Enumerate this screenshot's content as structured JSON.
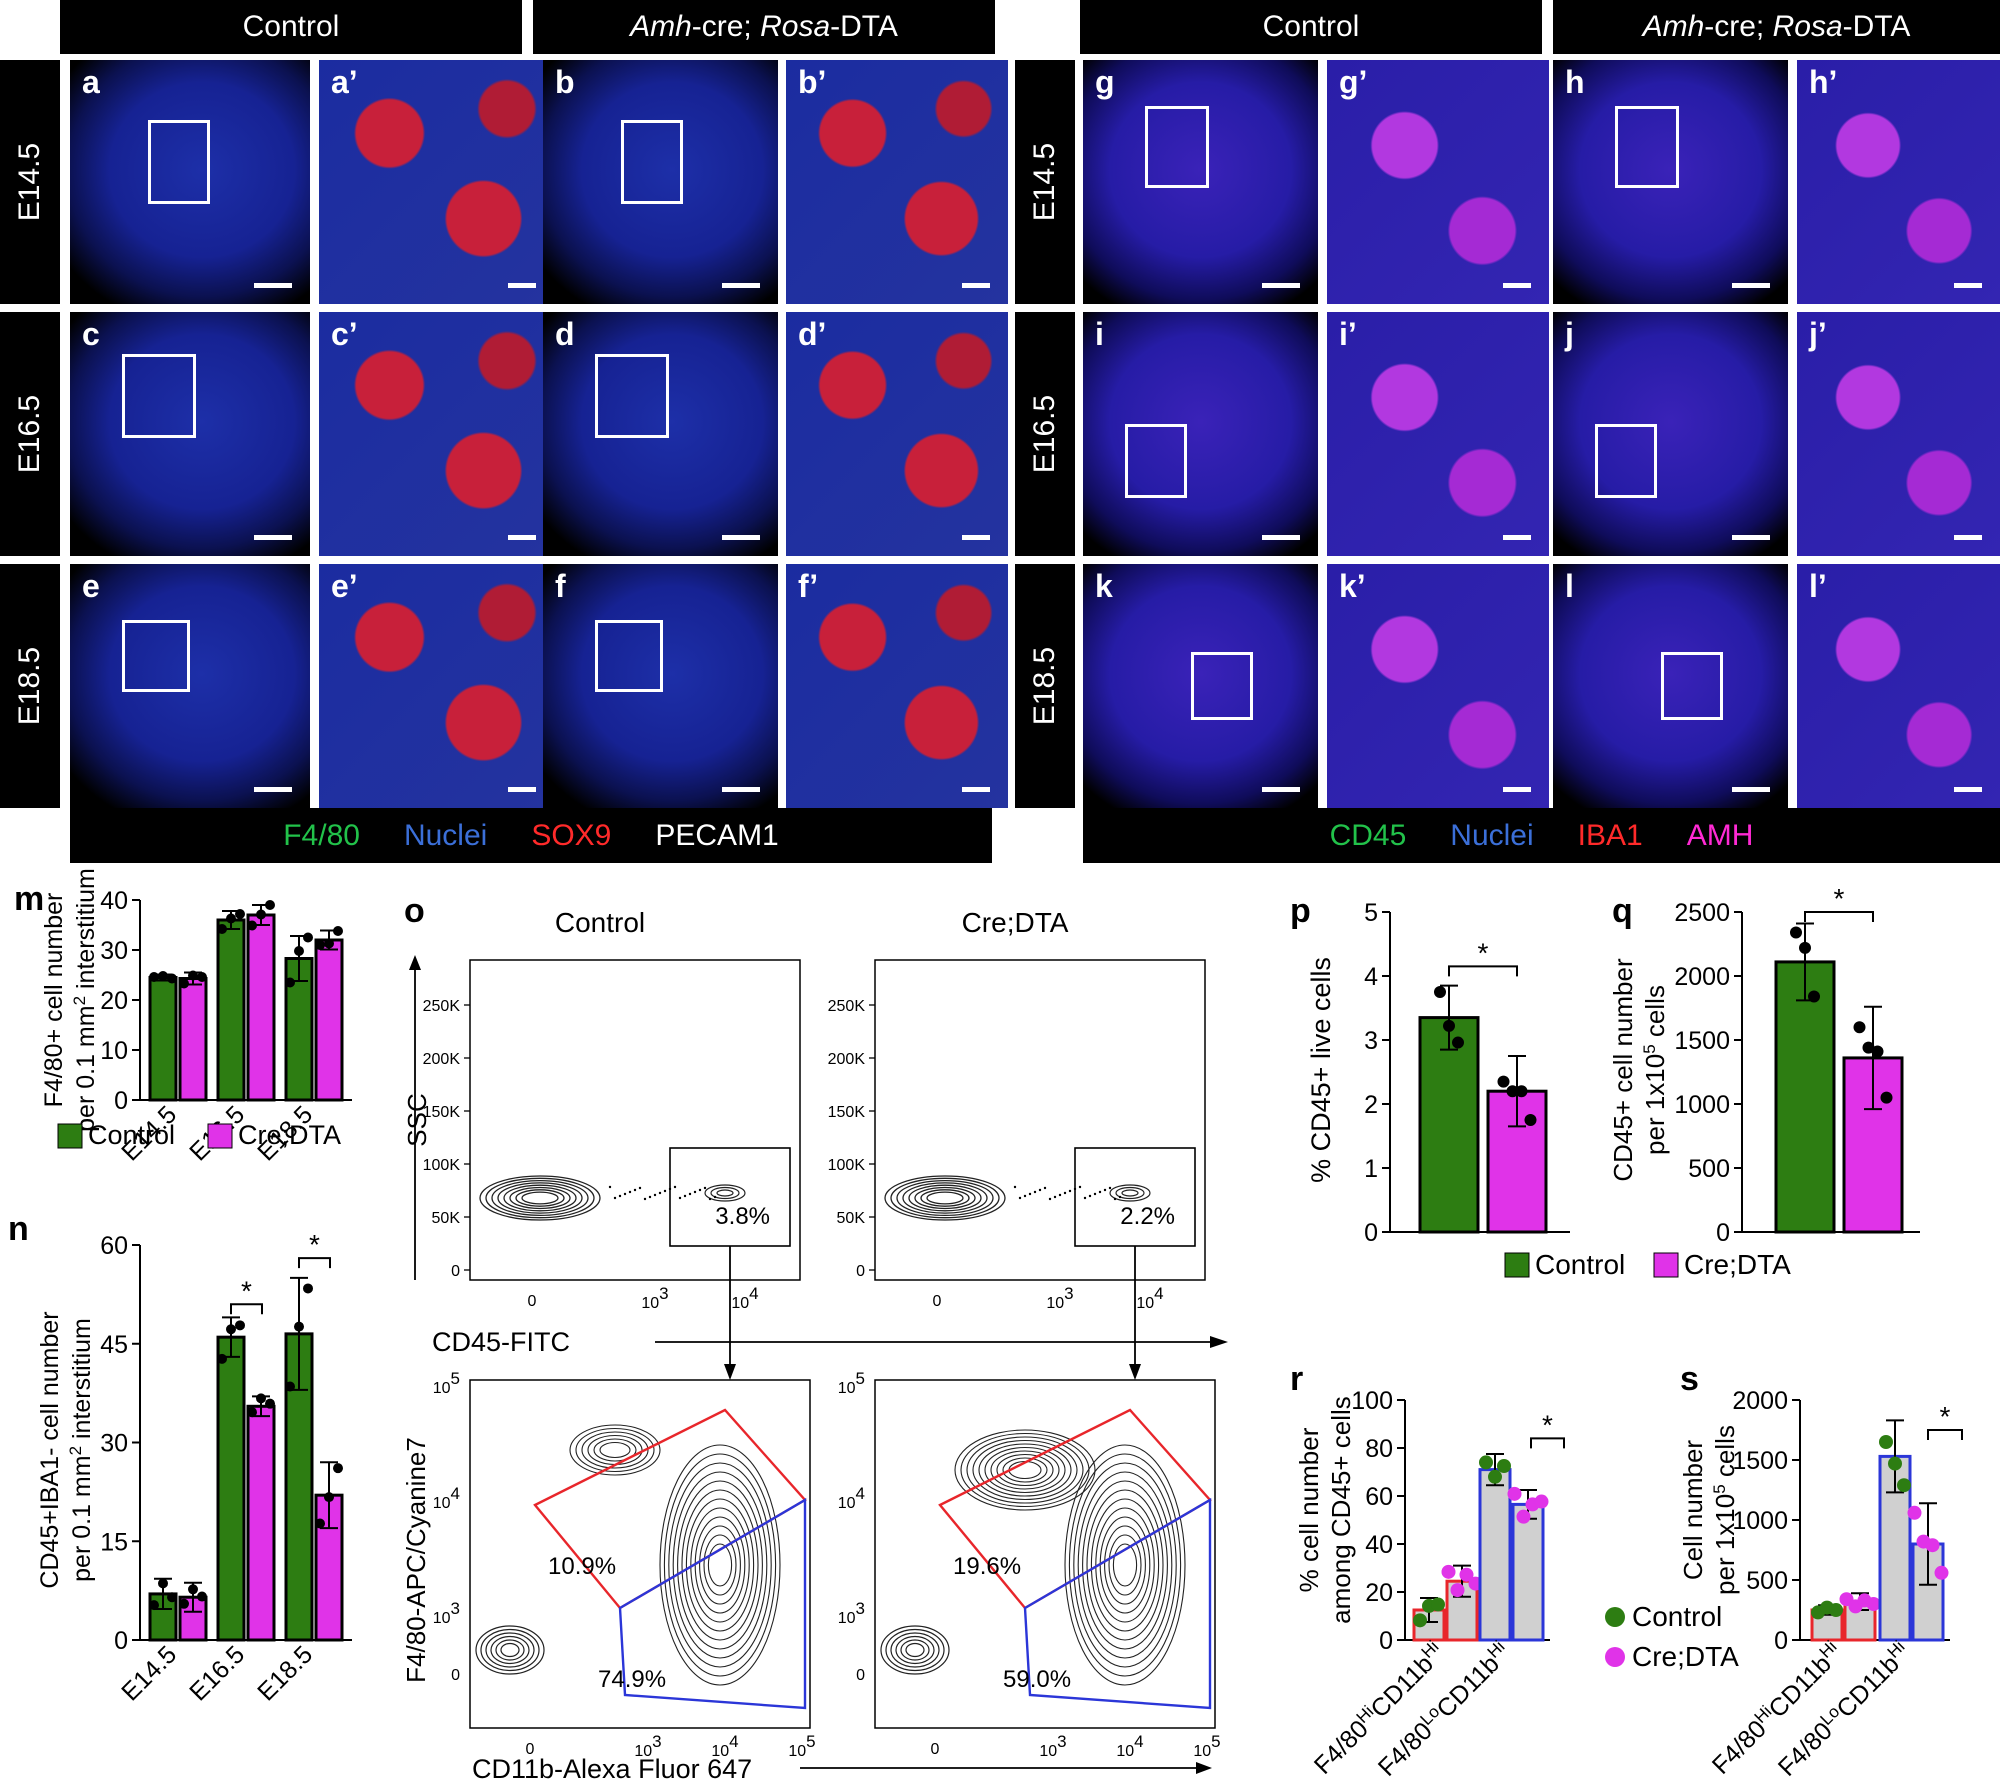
{
  "headers": {
    "control_left": "Control",
    "mutant_left_italic_1": "Amh",
    "mutant_left_mid": "-cre; ",
    "mutant_left_italic_2": "Rosa",
    "mutant_left_end": "-DTA",
    "control_right": "Control",
    "mutant_right_italic_1": "Amh",
    "mutant_right_mid": "-cre; ",
    "mutant_right_italic_2": "Rosa",
    "mutant_right_end": "-DTA"
  },
  "stages": [
    "E14.5",
    "E16.5",
    "E18.5"
  ],
  "left_panels": [
    [
      "a",
      "a’",
      "b",
      "b’"
    ],
    [
      "c",
      "c’",
      "d",
      "d’"
    ],
    [
      "e",
      "e’",
      "f",
      "f’"
    ]
  ],
  "right_panels": [
    [
      "g",
      "g’",
      "h",
      "h’"
    ],
    [
      "i",
      "i’",
      "j",
      "j’"
    ],
    [
      "k",
      "k’",
      "l",
      "l’"
    ]
  ],
  "left_legend": [
    {
      "label": "F4/80",
      "color": "#22c24a"
    },
    {
      "label": "Nuclei",
      "color": "#3b6fd8"
    },
    {
      "label": "SOX9",
      "color": "#ff2a2a"
    },
    {
      "label": "PECAM1",
      "color": "#ffffff"
    }
  ],
  "right_legend": [
    {
      "label": "CD45",
      "color": "#22c24a"
    },
    {
      "label": "Nuclei",
      "color": "#3b6fd8"
    },
    {
      "label": "IBA1",
      "color": "#ff2a2a"
    },
    {
      "label": "AMH",
      "color": "#ff2ad4"
    }
  ],
  "colors": {
    "control": "#2d7d12",
    "mutant": "#e033e8",
    "gate_red": "#e8262b",
    "gate_blue": "#2b36d8"
  },
  "legend_groups": {
    "control": "Control",
    "mutant": "Cre;DTA"
  },
  "chart_data": [
    {
      "id": "m",
      "type": "bar",
      "ylabel_1": "F4/80+ cell number",
      "ylabel_2_pre": "per 0.1 mm",
      "ylabel_2_sup": "2",
      "ylabel_2_post": " interstitium",
      "categories": [
        "E14.5",
        "E16.5",
        "E18.5"
      ],
      "ylim": [
        0,
        40
      ],
      "yticks": [
        "0",
        "10",
        "20",
        "30",
        "40"
      ],
      "series": [
        {
          "name": "Control",
          "values": [
            24.5,
            36,
            28.3
          ],
          "err": [
            0.6,
            1.8,
            4.5
          ],
          "points": [
            [
              24.6,
              24.8,
              24.3
            ],
            [
              34.2,
              36.3,
              37.2
            ],
            [
              23.5,
              29.8,
              32.5
            ]
          ]
        },
        {
          "name": "Cre;DTA",
          "values": [
            24.3,
            37,
            32
          ],
          "err": [
            1.2,
            2,
            1.9
          ],
          "points": [
            [
              23.3,
              24.9,
              24.6
            ],
            [
              34.9,
              37.1,
              39
            ]
          ],
          "points_extra": [
            [
              31,
              31.3,
              33.8
            ]
          ]
        }
      ]
    },
    {
      "id": "n",
      "type": "bar",
      "ylabel_1": "CD45+IBA1- cell number",
      "ylabel_2_pre": "per 0.1 mm",
      "ylabel_2_sup": "2",
      "ylabel_2_post": " interstitium",
      "categories": [
        "E14.5",
        "E16.5",
        "E18.5"
      ],
      "ylim": [
        0,
        60
      ],
      "yticks": [
        "0",
        "15",
        "30",
        "45",
        "60"
      ],
      "significance": [
        "*",
        "*"
      ],
      "series": [
        {
          "name": "Control",
          "values": [
            7,
            46,
            46.5
          ],
          "err": [
            2.3,
            3,
            8.5
          ],
          "points": [
            [
              5.3,
              8.6,
              6.5
            ],
            [
              42.7,
              47.2,
              47.8
            ],
            [
              38.5,
              47.6,
              53.4
            ]
          ]
        },
        {
          "name": "Cre;DTA",
          "values": [
            6.5,
            35.5,
            22
          ],
          "err": [
            2.2,
            1.5,
            5
          ],
          "points": [
            [
              5.5,
              7.7,
              6.6
            ],
            [
              34.6,
              36.7,
              35.9
            ],
            [
              17.7,
              21.7,
              26.1
            ]
          ]
        }
      ]
    },
    {
      "id": "p",
      "type": "bar",
      "ylabel": "% CD45+ live cells",
      "ylim": [
        0,
        5
      ],
      "yticks": [
        "0",
        "1",
        "2",
        "3",
        "4",
        "5"
      ],
      "significance": "*",
      "series": [
        {
          "name": "Control",
          "values": [
            3.35
          ],
          "err": [
            0.5
          ],
          "points": [
            3.75,
            3.22,
            2.96
          ]
        },
        {
          "name": "Cre;DTA",
          "values": [
            2.2
          ],
          "err": [
            0.55
          ],
          "points": [
            2.35,
            2.2,
            2.2,
            1.75
          ]
        }
      ]
    },
    {
      "id": "q",
      "type": "bar",
      "ylabel_1": "CD45+ cell number",
      "ylabel_2_pre": "per 1x10",
      "ylabel_2_sup": "5",
      "ylabel_2_post": " cells",
      "ylim": [
        0,
        2500
      ],
      "yticks": [
        "0",
        "500",
        "1000",
        "1500",
        "2000",
        "2500"
      ],
      "significance": "*",
      "series": [
        {
          "name": "Control",
          "values": [
            2110
          ],
          "err": [
            300
          ],
          "points": [
            2340,
            2220,
            1840
          ]
        },
        {
          "name": "Cre;DTA",
          "values": [
            1360
          ],
          "err": [
            400
          ],
          "points": [
            1600,
            1440,
            1410,
            1050
          ]
        }
      ]
    },
    {
      "id": "r",
      "type": "bar",
      "ylabel_1": "% cell number",
      "ylabel_2": "among CD45+ cells",
      "ylim": [
        0,
        100
      ],
      "yticks": [
        "0",
        "20",
        "40",
        "60",
        "80",
        "100"
      ],
      "significance": "*",
      "categories": [
        {
          "pre": "F4/80",
          "sup1": "Hi",
          "mid": "CD11b",
          "sup2": "Hi"
        },
        {
          "pre": "F4/80",
          "sup1": "Lo",
          "mid": "CD11b",
          "sup2": "Hi"
        }
      ],
      "series": [
        {
          "name": "Control",
          "values": [
            12.5,
            71
          ],
          "err": [
            5,
            6.5
          ],
          "points": [
            [
              8.2,
              14.2,
              14.8
            ],
            [
              74,
              68,
              72.5
            ]
          ]
        },
        {
          "name": "Cre;DTA",
          "values": [
            24.5,
            56.5
          ],
          "err": [
            6.5,
            6
          ],
          "points": [
            [
              28.4,
              20.8,
              27.2,
              23.5
            ],
            [
              60.9,
              51.4,
              56.5,
              57.7
            ]
          ]
        }
      ]
    },
    {
      "id": "s",
      "type": "bar",
      "ylabel_1": "Cell number",
      "ylabel_2_pre": "per 1x10",
      "ylabel_2_sup": "5",
      "ylabel_2_post": " cells",
      "ylim": [
        0,
        2000
      ],
      "yticks": [
        "0",
        "500",
        "1000",
        "1500",
        "2000"
      ],
      "significance": "*",
      "categories": [
        {
          "pre": "F4/80",
          "sup1": "Hi",
          "mid": "CD11b",
          "sup2": "Hi"
        },
        {
          "pre": "F4/80",
          "sup1": "Lo",
          "mid": "CD11b",
          "sup2": "Hi"
        }
      ],
      "series": [
        {
          "name": "Control",
          "values": [
            250,
            1530
          ],
          "err": [
            40,
            300
          ],
          "points": [
            [
              230,
              270,
              250
            ],
            [
              1650,
              1470,
              1290
            ]
          ]
        },
        {
          "name": "Cre;DTA",
          "values": [
            320,
            800
          ],
          "err": [
            70,
            340
          ],
          "points": [
            [
              340,
              280,
              330,
              300
            ],
            [
              1060,
              820,
              790,
              560
            ]
          ]
        }
      ]
    },
    {
      "id": "o",
      "type": "flow",
      "conditions": [
        "Control",
        "Cre;DTA"
      ],
      "top_ylabel": "SSC",
      "top_xlabel": "CD45-FITC",
      "top_yticks": [
        "0",
        "50K",
        "100K",
        "150K",
        "200K",
        "250K"
      ],
      "top_xticks_base": "10",
      "top_xticks_exp": [
        "3",
        "4"
      ],
      "top_xtick_zero": "0",
      "top_gates": [
        "3.8%",
        "2.2%"
      ],
      "bottom_ylabel": "F4/80-APC/Cyanine7",
      "bottom_xlabel": "CD11b-Alexa Fluor 647",
      "bottom_yticks_base": "10",
      "bottom_yticks_exp": [
        "3",
        "4",
        "5"
      ],
      "bottom_xticks_base": "10",
      "bottom_xticks_exp": [
        "3",
        "4",
        "5"
      ],
      "bottom_zero": "0",
      "red_gates": [
        "10.9%",
        "19.6%"
      ],
      "blue_gates": [
        "74.9%",
        "59.0%"
      ]
    }
  ]
}
